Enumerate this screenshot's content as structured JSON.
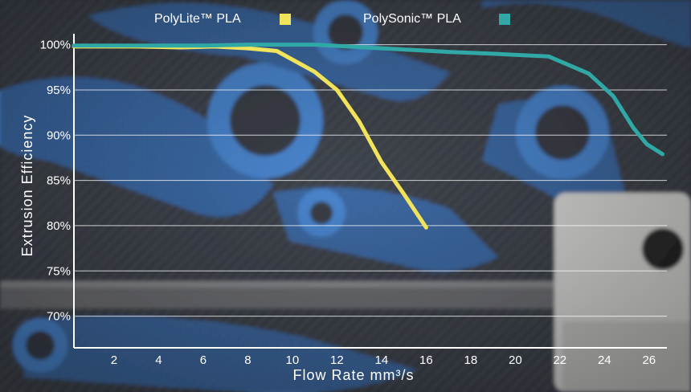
{
  "chart_data": {
    "type": "line",
    "xlabel": "Flow Rate mm³/s",
    "ylabel": "Extrusion Efficiency",
    "xlim": [
      0.2,
      26.8
    ],
    "ylim": [
      66.5,
      100.5
    ],
    "x_ticks": [
      {
        "value": 2,
        "label": "2"
      },
      {
        "value": 4,
        "label": "4"
      },
      {
        "value": 6,
        "label": "6"
      },
      {
        "value": 8,
        "label": "8"
      },
      {
        "value": 10,
        "label": "10"
      },
      {
        "value": 12,
        "label": "12"
      },
      {
        "value": 14,
        "label": "14"
      },
      {
        "value": 16,
        "label": "16"
      },
      {
        "value": 18,
        "label": "18"
      },
      {
        "value": 20,
        "label": "20"
      },
      {
        "value": 22,
        "label": "22"
      },
      {
        "value": 24,
        "label": "24"
      },
      {
        "value": 26,
        "label": "26"
      }
    ],
    "y_ticks": [
      {
        "value": 100,
        "label": "100%"
      },
      {
        "value": 95,
        "label": "95%"
      },
      {
        "value": 90,
        "label": "90%"
      },
      {
        "value": 85,
        "label": "85%"
      },
      {
        "value": 80,
        "label": "80%"
      },
      {
        "value": 75,
        "label": "75%"
      },
      {
        "value": 70,
        "label": "70%"
      }
    ],
    "grid": true,
    "legend_position": "top-center",
    "series": [
      {
        "name": "PolyLite™ PLA",
        "color": "#f2e45a",
        "points": [
          [
            0.2,
            99.8
          ],
          [
            3,
            99.8
          ],
          [
            5,
            99.7
          ],
          [
            6.5,
            99.8
          ],
          [
            8,
            99.6
          ],
          [
            9.3,
            99.3
          ],
          [
            11,
            97.0
          ],
          [
            12,
            95.0
          ],
          [
            13,
            91.5
          ],
          [
            14,
            87.0
          ],
          [
            15,
            83.5
          ],
          [
            16,
            79.8
          ]
        ]
      },
      {
        "name": "PolySonic™ PLA",
        "color": "#2fa8a6",
        "points": [
          [
            0.2,
            99.9
          ],
          [
            6,
            99.9
          ],
          [
            8,
            100.0
          ],
          [
            9.3,
            100.0
          ],
          [
            11,
            100.0
          ],
          [
            14,
            99.6
          ],
          [
            17,
            99.2
          ],
          [
            19,
            99.0
          ],
          [
            21.5,
            98.7
          ],
          [
            23.3,
            96.8
          ],
          [
            24.4,
            94.3
          ],
          [
            25.3,
            90.8
          ],
          [
            25.9,
            89.0
          ],
          [
            26.6,
            87.9
          ]
        ]
      }
    ]
  }
}
